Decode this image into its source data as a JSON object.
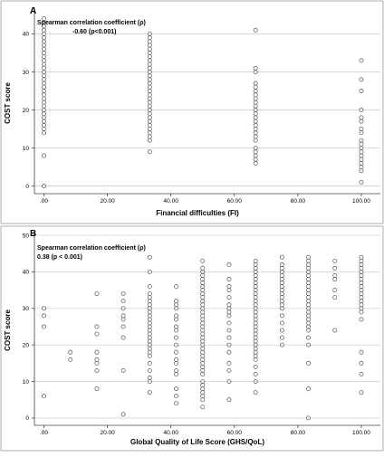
{
  "chart_data": [
    {
      "panel": "A",
      "type": "scatter",
      "title": "",
      "xlabel": "Financial difficulties (FI)",
      "ylabel": "COST score",
      "xlim": [
        -3,
        106
      ],
      "ylim": [
        -2,
        47
      ],
      "xticks": [
        ".00",
        "20.00",
        "40.00",
        "60.00",
        "80.00",
        "100.00"
      ],
      "yticks": [
        "0",
        "10",
        "20",
        "30",
        "40"
      ],
      "grid": true,
      "annotation": [
        "Spearman correlation coefficient (ρ)",
        "-0.60 (p<0.001)"
      ],
      "series": [
        {
          "x": 0,
          "y": [
            0,
            8,
            14,
            15,
            16,
            17,
            18,
            19,
            20,
            21,
            22,
            23,
            24,
            25,
            26,
            27,
            28,
            29,
            30,
            31,
            32,
            33,
            34,
            35,
            36,
            37,
            38,
            39,
            40,
            41,
            42,
            43,
            44
          ]
        },
        {
          "x": 33.33,
          "y": [
            9,
            12,
            13,
            14,
            15,
            16,
            17,
            18,
            19,
            20,
            21,
            22,
            23,
            24,
            25,
            26,
            27,
            28,
            29,
            30,
            31,
            32,
            33,
            34,
            35,
            36,
            37,
            38,
            39,
            40
          ]
        },
        {
          "x": 66.67,
          "y": [
            6,
            7,
            8,
            9,
            10,
            12,
            13,
            14,
            15,
            16,
            17,
            18,
            19,
            20,
            21,
            22,
            23,
            24,
            25,
            26,
            27,
            30,
            31,
            41
          ]
        },
        {
          "x": 100,
          "y": [
            1,
            4,
            5,
            6,
            7,
            8,
            9,
            10,
            11,
            12,
            14,
            15,
            17,
            18,
            20,
            25,
            28,
            33
          ]
        }
      ]
    },
    {
      "panel": "B",
      "type": "scatter",
      "title": "",
      "xlabel": "Global Quality of Life Score (GHS/QoL)",
      "ylabel": "COST score",
      "xlim": [
        -3,
        106
      ],
      "ylim": [
        -2,
        51
      ],
      "xticks": [
        ".00",
        "20.00",
        "40.00",
        "60.00",
        "80.00",
        "100.00"
      ],
      "yticks": [
        "0",
        "10",
        "20",
        "30",
        "40",
        "50"
      ],
      "grid": true,
      "annotation": [
        "Spearman correlation coefficient (ρ)",
        "0.38 (p < 0.001)"
      ],
      "series": [
        {
          "x": 0,
          "y": [
            6,
            25,
            28,
            30
          ]
        },
        {
          "x": 8.33,
          "y": [
            16,
            18
          ]
        },
        {
          "x": 16.67,
          "y": [
            8,
            13,
            15,
            16,
            18,
            23,
            25,
            34
          ]
        },
        {
          "x": 25,
          "y": [
            1,
            13,
            22,
            25,
            27,
            28,
            30,
            32,
            34
          ]
        },
        {
          "x": 33.33,
          "y": [
            7,
            10,
            11,
            13,
            15,
            17,
            18,
            19,
            20,
            21,
            22,
            23,
            24,
            25,
            26,
            27,
            28,
            29,
            30,
            31,
            32,
            33,
            34,
            36,
            40,
            44
          ]
        },
        {
          "x": 41.67,
          "y": [
            4,
            6,
            8,
            12,
            13,
            15,
            16,
            18,
            20,
            22,
            24,
            25,
            27,
            28,
            30,
            31,
            32,
            36
          ]
        },
        {
          "x": 50,
          "y": [
            3,
            5,
            6,
            7,
            8,
            9,
            10,
            12,
            13,
            14,
            15,
            16,
            17,
            18,
            19,
            20,
            21,
            22,
            23,
            24,
            25,
            26,
            27,
            28,
            29,
            30,
            31,
            32,
            33,
            34,
            35,
            36,
            37,
            38,
            39,
            40,
            41,
            43
          ]
        },
        {
          "x": 58.33,
          "y": [
            5,
            10,
            13,
            15,
            18,
            20,
            22,
            24,
            26,
            28,
            29,
            30,
            31,
            33,
            35,
            36,
            38,
            42
          ]
        },
        {
          "x": 66.67,
          "y": [
            7,
            10,
            12,
            14,
            16,
            17,
            18,
            19,
            20,
            21,
            22,
            23,
            24,
            25,
            26,
            27,
            28,
            29,
            30,
            31,
            32,
            33,
            34,
            35,
            36,
            37,
            38,
            39,
            40,
            41,
            42,
            43
          ]
        },
        {
          "x": 75,
          "y": [
            20,
            22,
            24,
            26,
            28,
            30,
            31,
            32,
            33,
            34,
            35,
            36,
            37,
            38,
            39,
            40,
            41,
            42,
            44
          ]
        },
        {
          "x": 83.33,
          "y": [
            0,
            8,
            15,
            20,
            22,
            24,
            25,
            26,
            27,
            28,
            29,
            30,
            31,
            32,
            33,
            34,
            35,
            36,
            37,
            38,
            39,
            40,
            41,
            42,
            43,
            44
          ]
        },
        {
          "x": 91.67,
          "y": [
            24,
            33,
            35,
            38,
            39,
            41,
            43
          ]
        },
        {
          "x": 100,
          "y": [
            7,
            12,
            15,
            18,
            27,
            29,
            30,
            31,
            32,
            33,
            34,
            35,
            36,
            37,
            38,
            39,
            40,
            41,
            42,
            43,
            44
          ]
        }
      ]
    }
  ]
}
